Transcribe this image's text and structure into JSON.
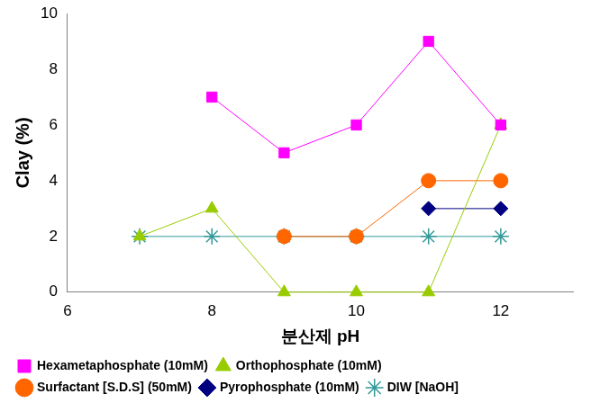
{
  "chart_data": {
    "type": "line",
    "x_label": "분산제 pH",
    "y_label": "Clay (%)",
    "x": [
      7,
      8,
      9,
      10,
      11,
      12
    ],
    "series": [
      {
        "name": "Hexametaphosphate (10mM)",
        "color": "#ff00ff",
        "marker": "square",
        "values": [
          null,
          7,
          5,
          6,
          9,
          6
        ]
      },
      {
        "name": "Orthophosphate (10mM)",
        "color": "#99cc00",
        "marker": "triangle",
        "values": [
          2,
          3,
          0,
          0,
          0,
          6
        ]
      },
      {
        "name": "Surfactant [S.D.S] (50mM)",
        "color": "#ff6600",
        "marker": "circle",
        "values": [
          null,
          null,
          2,
          2,
          4,
          4
        ]
      },
      {
        "name": "Pyrophosphate (10mM)",
        "color": "#000080",
        "marker": "diamond",
        "values": [
          null,
          null,
          null,
          null,
          3,
          3
        ]
      },
      {
        "name": "DIW [NaOH]",
        "color": "#339999",
        "marker": "asterisk",
        "values": [
          2,
          2,
          2,
          2,
          2,
          2
        ]
      }
    ],
    "xlim": [
      6,
      13
    ],
    "xticks": [
      6,
      8,
      10,
      12
    ],
    "ylim": [
      0,
      10
    ],
    "yticks": [
      0,
      2,
      4,
      6,
      8,
      10
    ],
    "grid": false,
    "legend": "bottom"
  }
}
